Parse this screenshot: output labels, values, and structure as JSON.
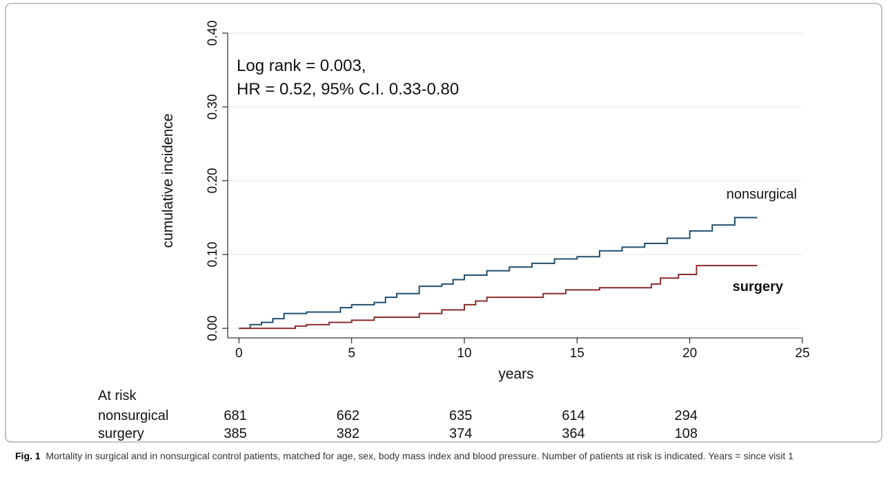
{
  "chart_data": {
    "type": "step",
    "annotations": [
      "Log rank = 0.003,",
      "HR = 0.52, 95% C.I. 0.33-0.80"
    ],
    "xlabel": "years",
    "ylabel": "cumulative incidence",
    "xlim": [
      -0.5,
      25
    ],
    "ylim": [
      -0.013,
      0.4
    ],
    "xticks": [
      0,
      5,
      10,
      15,
      20,
      25
    ],
    "yticks": [
      {
        "value": 0,
        "label": "0.00"
      },
      {
        "value": 0.1,
        "label": "0.10"
      },
      {
        "value": 0.2,
        "label": "0.20"
      },
      {
        "value": 0.3,
        "label": "0.30"
      },
      {
        "value": 0.4,
        "label": "0.40"
      }
    ],
    "grid": true,
    "series": [
      {
        "name": "nonsurgical",
        "color": "#1f4e6e",
        "x": [
          0,
          0.5,
          1,
          1.5,
          2,
          3,
          4.5,
          5,
          6,
          6.5,
          7,
          8,
          9,
          9.5,
          10,
          11,
          12,
          13,
          14,
          15,
          16,
          17,
          18,
          19,
          20,
          21,
          22,
          23
        ],
        "values": [
          0,
          0.005,
          0.008,
          0.013,
          0.02,
          0.022,
          0.028,
          0.032,
          0.035,
          0.042,
          0.047,
          0.057,
          0.06,
          0.066,
          0.072,
          0.078,
          0.083,
          0.088,
          0.094,
          0.097,
          0.105,
          0.11,
          0.115,
          0.122,
          0.132,
          0.14,
          0.15,
          0.15
        ]
      },
      {
        "name": "surgery",
        "color": "#8b2a2a",
        "x": [
          0,
          2.5,
          3,
          4,
          5,
          6,
          8,
          9,
          10,
          10.5,
          11,
          13.5,
          14.5,
          16,
          18,
          18.3,
          18.7,
          19.5,
          20.3,
          23
        ],
        "values": [
          0,
          0.003,
          0.005,
          0.008,
          0.011,
          0.015,
          0.02,
          0.025,
          0.032,
          0.037,
          0.042,
          0.047,
          0.052,
          0.055,
          0.055,
          0.06,
          0.068,
          0.073,
          0.085,
          0.085
        ]
      }
    ],
    "at_risk": {
      "title": "At risk",
      "x": [
        0,
        5,
        10,
        15,
        20
      ],
      "rows": [
        {
          "name": "nonsurgical",
          "values": [
            681,
            662,
            635,
            614,
            294
          ]
        },
        {
          "name": "surgery",
          "values": [
            385,
            382,
            374,
            364,
            108
          ]
        }
      ]
    },
    "caption": {
      "label": "Fig. 1",
      "text": "Mortality in surgical and in nonsurgical control patients, matched for age, sex, body mass index and blood pressure. Number of patients at risk is indicated. Years = since visit 1"
    }
  }
}
